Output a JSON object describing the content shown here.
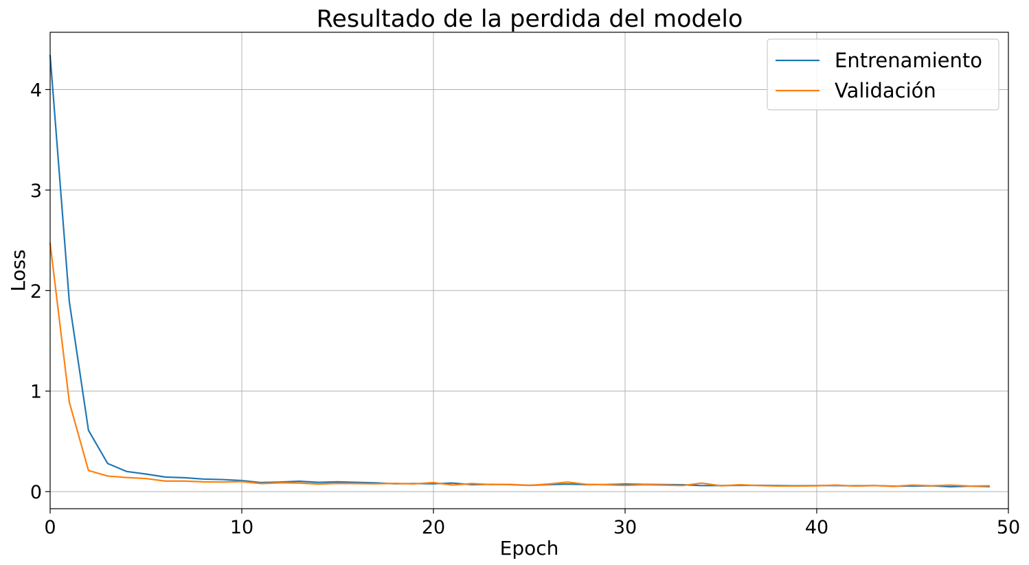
{
  "chart_data": {
    "type": "line",
    "title": "Resultado de la perdida del modelo",
    "xlabel": "Epoch",
    "ylabel": "Loss",
    "xlim": [
      0,
      50
    ],
    "ylim": [
      -0.17,
      4.57
    ],
    "xticks": [
      0,
      10,
      20,
      30,
      40,
      50
    ],
    "yticks": [
      0,
      1,
      2,
      3,
      4
    ],
    "grid": true,
    "legend_position": "top-right",
    "x": [
      0,
      1,
      2,
      3,
      4,
      5,
      6,
      7,
      8,
      9,
      10,
      11,
      12,
      13,
      14,
      15,
      16,
      17,
      18,
      19,
      20,
      21,
      22,
      23,
      24,
      25,
      26,
      27,
      28,
      29,
      30,
      31,
      32,
      33,
      34,
      35,
      36,
      37,
      38,
      39,
      40,
      41,
      42,
      43,
      44,
      45,
      46,
      47,
      48,
      49
    ],
    "series": [
      {
        "name": "Entrenamiento",
        "color": "#1f77b4",
        "values": [
          4.34,
          1.89,
          0.61,
          0.28,
          0.2,
          0.175,
          0.145,
          0.138,
          0.125,
          0.12,
          0.11,
          0.09,
          0.095,
          0.103,
          0.092,
          0.097,
          0.092,
          0.087,
          0.078,
          0.08,
          0.078,
          0.085,
          0.07,
          0.072,
          0.07,
          0.062,
          0.07,
          0.075,
          0.07,
          0.07,
          0.075,
          0.072,
          0.07,
          0.068,
          0.06,
          0.06,
          0.062,
          0.062,
          0.06,
          0.058,
          0.06,
          0.06,
          0.058,
          0.06,
          0.055,
          0.055,
          0.058,
          0.048,
          0.055,
          0.05
        ]
      },
      {
        "name": "Validación",
        "color": "#ff7f0e",
        "values": [
          2.47,
          0.89,
          0.21,
          0.155,
          0.14,
          0.13,
          0.105,
          0.105,
          0.097,
          0.095,
          0.1,
          0.08,
          0.088,
          0.085,
          0.075,
          0.082,
          0.08,
          0.078,
          0.082,
          0.077,
          0.09,
          0.065,
          0.08,
          0.07,
          0.072,
          0.062,
          0.075,
          0.095,
          0.072,
          0.068,
          0.062,
          0.068,
          0.065,
          0.06,
          0.085,
          0.058,
          0.068,
          0.06,
          0.055,
          0.055,
          0.058,
          0.065,
          0.055,
          0.06,
          0.052,
          0.065,
          0.058,
          0.065,
          0.055,
          0.058
        ]
      }
    ]
  }
}
